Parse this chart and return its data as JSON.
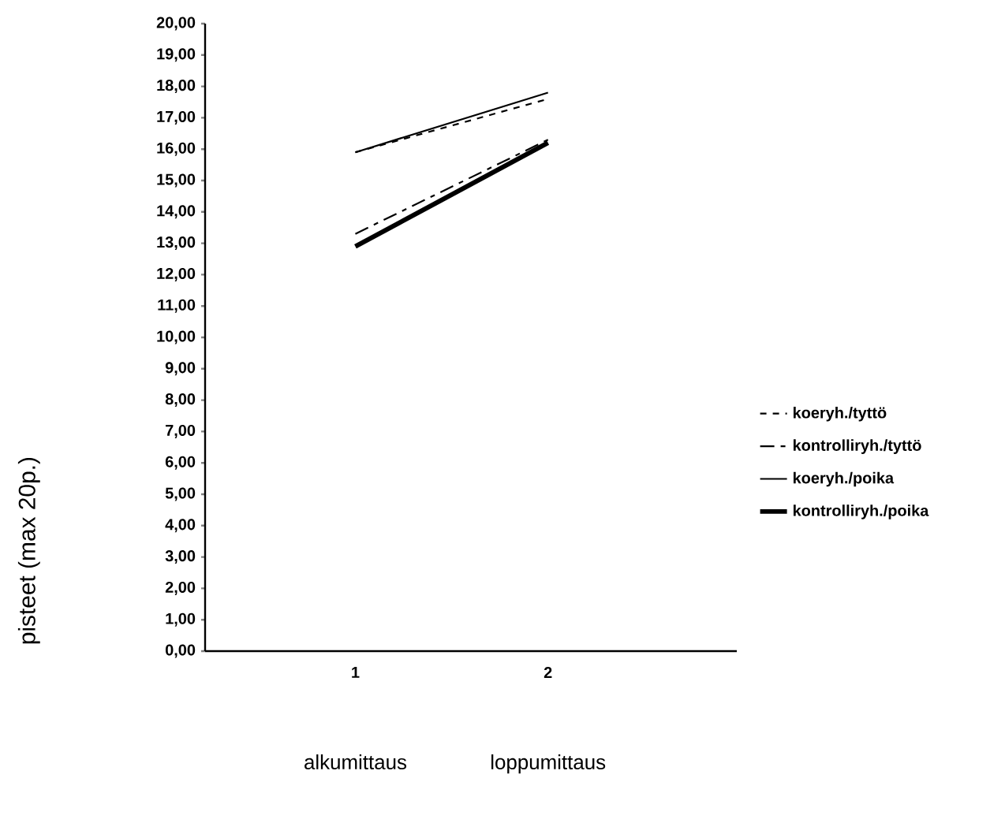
{
  "chart_data": {
    "type": "line",
    "ylabel": "pisteet (max 20p.)",
    "annotations": [
      "alkumittaus",
      "loppumittaus"
    ],
    "categories": [
      "1",
      "2"
    ],
    "series": [
      {
        "name": "koeryh./tyttö",
        "color": "#000000",
        "line_style": "dashed",
        "values": [
          15.9,
          17.6
        ]
      },
      {
        "name": "kontrolliryh./tyttö",
        "color": "#000000",
        "line_style": "dashed",
        "values": [
          13.3,
          16.3
        ]
      },
      {
        "name": "koeryh./poika",
        "color": "#000000",
        "line_style": "solid",
        "values": [
          15.9,
          17.8
        ]
      },
      {
        "name": "kontrolliryh./poika",
        "color": "#000000",
        "line_style": "solid",
        "values": [
          12.9,
          16.2
        ]
      }
    ],
    "ylim": [
      0,
      20
    ],
    "yticks": [
      {
        "value": 0,
        "label": "0,00"
      },
      {
        "value": 1,
        "label": "1,00"
      },
      {
        "value": 2,
        "label": "2,00"
      },
      {
        "value": 3,
        "label": "3,00"
      },
      {
        "value": 4,
        "label": "4,00"
      },
      {
        "value": 5,
        "label": "5,00"
      },
      {
        "value": 6,
        "label": "6,00"
      },
      {
        "value": 7,
        "label": "7,00"
      },
      {
        "value": 8,
        "label": "8,00"
      },
      {
        "value": 9,
        "label": "9,00"
      },
      {
        "value": 10,
        "label": "10,00"
      },
      {
        "value": 11,
        "label": "11,00"
      },
      {
        "value": 12,
        "label": "12,00"
      },
      {
        "value": 13,
        "label": "13,00"
      },
      {
        "value": 14,
        "label": "14,00"
      },
      {
        "value": 15,
        "label": "15,00"
      },
      {
        "value": 16,
        "label": "16,00"
      },
      {
        "value": 17,
        "label": "17,00"
      },
      {
        "value": 18,
        "label": "18,00"
      },
      {
        "value": 19,
        "label": "19,00"
      },
      {
        "value": 20,
        "label": "20,00"
      }
    ],
    "grid": false,
    "legend": "right",
    "marker": "none"
  }
}
